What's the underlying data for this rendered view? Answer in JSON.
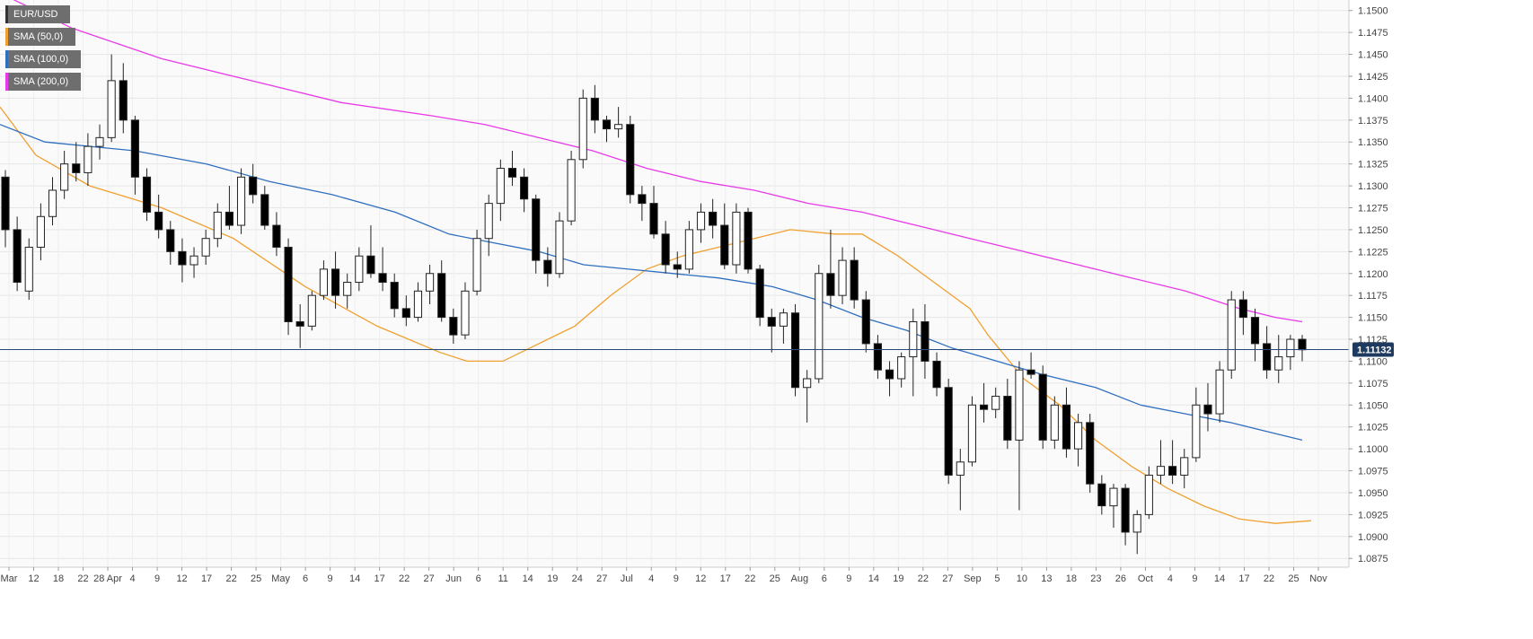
{
  "chart_data": {
    "type": "candlestick",
    "symbol": "EUR/USD",
    "legend": [
      {
        "label": "EUR/USD",
        "color": "#333333"
      },
      {
        "label": "SMA (50,0)",
        "color": "#f0a030"
      },
      {
        "label": "SMA (100,0)",
        "color": "#2f6fbf"
      },
      {
        "label": "SMA (200,0)",
        "color": "#e83ae8"
      }
    ],
    "legend_placement": "top-left",
    "grid": true,
    "ylim": [
      1.0865,
      1.1512
    ],
    "y_ticks": [
      "1.0875",
      "1.0900",
      "1.0925",
      "1.0950",
      "1.0975",
      "1.1000",
      "1.1025",
      "1.1050",
      "1.1075",
      "1.1100",
      "1.1125",
      "1.1150",
      "1.1175",
      "1.1200",
      "1.1225",
      "1.1250",
      "1.1275",
      "1.1300",
      "1.1325",
      "1.1350",
      "1.1375",
      "1.1400",
      "1.1425",
      "1.1450",
      "1.1475",
      "1.1500"
    ],
    "x_ticks": [
      "Mar",
      "12",
      "18",
      "22",
      "28 Apr",
      "4",
      "9",
      "12",
      "17",
      "22",
      "25",
      "May",
      "6",
      "9",
      "14",
      "17",
      "22",
      "27",
      "Jun",
      "6",
      "11",
      "14",
      "19",
      "24",
      "27",
      "Jul",
      "4",
      "9",
      "12",
      "17",
      "22",
      "25",
      "Aug",
      "6",
      "9",
      "14",
      "19",
      "22",
      "27",
      "Sep",
      "5",
      "10",
      "13",
      "18",
      "23",
      "26",
      "Oct",
      "4",
      "9",
      "14",
      "17",
      "22",
      "25",
      "Nov"
    ],
    "current_price": "1.11132",
    "current_price_value": 1.11132,
    "colors": {
      "up": "#ffffff",
      "down": "#000000",
      "price_line": "#2a4a7a",
      "price_tag": "#1f3a5f"
    },
    "candles": [
      [
        1.131,
        1.1318,
        1.123,
        1.125
      ],
      [
        1.125,
        1.1265,
        1.118,
        1.119
      ],
      [
        1.118,
        1.124,
        1.117,
        1.123
      ],
      [
        1.123,
        1.128,
        1.1215,
        1.1265
      ],
      [
        1.1265,
        1.131,
        1.1255,
        1.1295
      ],
      [
        1.1295,
        1.134,
        1.1285,
        1.1325
      ],
      [
        1.1325,
        1.135,
        1.1305,
        1.1315
      ],
      [
        1.1315,
        1.136,
        1.13,
        1.1345
      ],
      [
        1.1345,
        1.137,
        1.133,
        1.1355
      ],
      [
        1.1355,
        1.145,
        1.135,
        1.142
      ],
      [
        1.142,
        1.144,
        1.136,
        1.1375
      ],
      [
        1.1375,
        1.138,
        1.129,
        1.131
      ],
      [
        1.131,
        1.132,
        1.126,
        1.127
      ],
      [
        1.127,
        1.129,
        1.124,
        1.125
      ],
      [
        1.125,
        1.126,
        1.121,
        1.1225
      ],
      [
        1.1225,
        1.124,
        1.119,
        1.121
      ],
      [
        1.121,
        1.123,
        1.1195,
        1.122
      ],
      [
        1.122,
        1.125,
        1.121,
        1.124
      ],
      [
        1.124,
        1.128,
        1.123,
        1.127
      ],
      [
        1.127,
        1.13,
        1.125,
        1.1255
      ],
      [
        1.1255,
        1.132,
        1.1245,
        1.131
      ],
      [
        1.131,
        1.1325,
        1.128,
        1.129
      ],
      [
        1.129,
        1.13,
        1.125,
        1.1255
      ],
      [
        1.1255,
        1.127,
        1.122,
        1.123
      ],
      [
        1.123,
        1.124,
        1.113,
        1.1145
      ],
      [
        1.1145,
        1.1165,
        1.1115,
        1.114
      ],
      [
        1.114,
        1.118,
        1.1135,
        1.1175
      ],
      [
        1.1175,
        1.1215,
        1.117,
        1.1205
      ],
      [
        1.1205,
        1.1225,
        1.116,
        1.1175
      ],
      [
        1.1175,
        1.12,
        1.116,
        1.119
      ],
      [
        1.119,
        1.123,
        1.118,
        1.122
      ],
      [
        1.122,
        1.1255,
        1.1195,
        1.12
      ],
      [
        1.12,
        1.123,
        1.118,
        1.119
      ],
      [
        1.119,
        1.12,
        1.115,
        1.116
      ],
      [
        1.116,
        1.1175,
        1.114,
        1.115
      ],
      [
        1.115,
        1.119,
        1.1145,
        1.118
      ],
      [
        1.118,
        1.121,
        1.1165,
        1.12
      ],
      [
        1.12,
        1.1215,
        1.1145,
        1.115
      ],
      [
        1.115,
        1.116,
        1.112,
        1.113
      ],
      [
        1.113,
        1.119,
        1.1125,
        1.118
      ],
      [
        1.118,
        1.125,
        1.1175,
        1.124
      ],
      [
        1.124,
        1.129,
        1.122,
        1.128
      ],
      [
        1.128,
        1.133,
        1.126,
        1.132
      ],
      [
        1.132,
        1.134,
        1.13,
        1.131
      ],
      [
        1.131,
        1.132,
        1.127,
        1.1285
      ],
      [
        1.1285,
        1.129,
        1.12,
        1.1215
      ],
      [
        1.1215,
        1.123,
        1.1185,
        1.12
      ],
      [
        1.12,
        1.127,
        1.1195,
        1.126
      ],
      [
        1.126,
        1.134,
        1.1255,
        1.133
      ],
      [
        1.133,
        1.141,
        1.132,
        1.14
      ],
      [
        1.14,
        1.1415,
        1.136,
        1.1375
      ],
      [
        1.1375,
        1.138,
        1.135,
        1.1365
      ],
      [
        1.1365,
        1.139,
        1.1355,
        1.137
      ],
      [
        1.137,
        1.138,
        1.128,
        1.129
      ],
      [
        1.129,
        1.13,
        1.126,
        1.128
      ],
      [
        1.128,
        1.13,
        1.124,
        1.1245
      ],
      [
        1.1245,
        1.126,
        1.12,
        1.121
      ],
      [
        1.121,
        1.1225,
        1.1195,
        1.1205
      ],
      [
        1.1205,
        1.126,
        1.12,
        1.125
      ],
      [
        1.125,
        1.128,
        1.1235,
        1.127
      ],
      [
        1.127,
        1.1285,
        1.124,
        1.1255
      ],
      [
        1.1255,
        1.128,
        1.1205,
        1.121
      ],
      [
        1.121,
        1.128,
        1.12,
        1.127
      ],
      [
        1.127,
        1.1275,
        1.12,
        1.1205
      ],
      [
        1.1205,
        1.121,
        1.114,
        1.115
      ],
      [
        1.115,
        1.116,
        1.111,
        1.114
      ],
      [
        1.114,
        1.116,
        1.112,
        1.1155
      ],
      [
        1.1155,
        1.1165,
        1.106,
        1.107
      ],
      [
        1.107,
        1.109,
        1.103,
        1.108
      ],
      [
        1.108,
        1.121,
        1.1075,
        1.12
      ],
      [
        1.12,
        1.125,
        1.116,
        1.1175
      ],
      [
        1.1175,
        1.123,
        1.1165,
        1.1215
      ],
      [
        1.1215,
        1.123,
        1.116,
        1.117
      ],
      [
        1.117,
        1.118,
        1.111,
        1.112
      ],
      [
        1.112,
        1.113,
        1.108,
        1.109
      ],
      [
        1.109,
        1.11,
        1.106,
        1.108
      ],
      [
        1.108,
        1.111,
        1.107,
        1.1105
      ],
      [
        1.1105,
        1.116,
        1.106,
        1.1145
      ],
      [
        1.1145,
        1.1165,
        1.108,
        1.11
      ],
      [
        1.11,
        1.111,
        1.106,
        1.107
      ],
      [
        1.107,
        1.108,
        1.096,
        1.097
      ],
      [
        1.097,
        1.1,
        1.093,
        1.0985
      ],
      [
        1.0985,
        1.106,
        1.098,
        1.105
      ],
      [
        1.105,
        1.1075,
        1.103,
        1.1045
      ],
      [
        1.1045,
        1.107,
        1.1035,
        1.106
      ],
      [
        1.106,
        1.108,
        1.1,
        1.101
      ],
      [
        1.101,
        1.11,
        1.093,
        1.109
      ],
      [
        1.109,
        1.111,
        1.108,
        1.1085
      ],
      [
        1.1085,
        1.1095,
        1.1,
        1.101
      ],
      [
        1.101,
        1.106,
        1.1,
        1.105
      ],
      [
        1.105,
        1.107,
        1.099,
        1.1
      ],
      [
        1.1,
        1.104,
        1.098,
        1.103
      ],
      [
        1.103,
        1.104,
        1.095,
        1.096
      ],
      [
        1.096,
        1.097,
        1.0925,
        1.0935
      ],
      [
        1.0935,
        1.096,
        1.091,
        1.0955
      ],
      [
        1.0955,
        1.096,
        1.089,
        1.0905
      ],
      [
        1.0905,
        1.093,
        1.088,
        1.0925
      ],
      [
        1.0925,
        1.098,
        1.092,
        1.097
      ],
      [
        1.097,
        1.101,
        1.096,
        1.098
      ],
      [
        1.098,
        1.101,
        1.096,
        1.097
      ],
      [
        1.097,
        1.1,
        1.0955,
        1.099
      ],
      [
        1.099,
        1.107,
        1.0985,
        1.105
      ],
      [
        1.105,
        1.1075,
        1.102,
        1.104
      ],
      [
        1.104,
        1.11,
        1.103,
        1.109
      ],
      [
        1.109,
        1.118,
        1.108,
        1.117
      ],
      [
        1.117,
        1.118,
        1.113,
        1.115
      ],
      [
        1.115,
        1.116,
        1.11,
        1.112
      ],
      [
        1.112,
        1.114,
        1.108,
        1.109
      ],
      [
        1.109,
        1.113,
        1.1075,
        1.1105
      ],
      [
        1.1105,
        1.113,
        1.109,
        1.1125
      ],
      [
        1.1125,
        1.113,
        1.11,
        1.1113
      ]
    ],
    "sma50": [
      [
        0,
        1.139
      ],
      [
        40,
        1.1335
      ],
      [
        100,
        1.13
      ],
      [
        180,
        1.1275
      ],
      [
        260,
        1.124
      ],
      [
        340,
        1.1185
      ],
      [
        420,
        1.114
      ],
      [
        490,
        1.111
      ],
      [
        520,
        1.11
      ],
      [
        560,
        1.11
      ],
      [
        600,
        1.112
      ],
      [
        640,
        1.114
      ],
      [
        680,
        1.1175
      ],
      [
        720,
        1.1205
      ],
      [
        760,
        1.122
      ],
      [
        800,
        1.123
      ],
      [
        840,
        1.124
      ],
      [
        880,
        1.125
      ],
      [
        930,
        1.1245
      ],
      [
        960,
        1.1245
      ],
      [
        1000,
        1.122
      ],
      [
        1040,
        1.119
      ],
      [
        1080,
        1.116
      ],
      [
        1100,
        1.113
      ],
      [
        1140,
        1.108
      ],
      [
        1180,
        1.105
      ],
      [
        1220,
        1.101
      ],
      [
        1260,
        1.098
      ],
      [
        1300,
        1.0955
      ],
      [
        1340,
        1.0935
      ],
      [
        1380,
        1.092
      ],
      [
        1420,
        1.0915
      ],
      [
        1460,
        1.0918
      ]
    ],
    "sma100": [
      [
        0,
        1.137
      ],
      [
        50,
        1.135
      ],
      [
        150,
        1.134
      ],
      [
        230,
        1.1325
      ],
      [
        300,
        1.1305
      ],
      [
        370,
        1.129
      ],
      [
        440,
        1.127
      ],
      [
        500,
        1.1245
      ],
      [
        550,
        1.1235
      ],
      [
        600,
        1.1225
      ],
      [
        650,
        1.121
      ],
      [
        700,
        1.1205
      ],
      [
        750,
        1.12
      ],
      [
        800,
        1.1195
      ],
      [
        860,
        1.1185
      ],
      [
        910,
        1.117
      ],
      [
        960,
        1.115
      ],
      [
        1010,
        1.1135
      ],
      [
        1060,
        1.1115
      ],
      [
        1110,
        1.11
      ],
      [
        1160,
        1.1085
      ],
      [
        1220,
        1.107
      ],
      [
        1270,
        1.105
      ],
      [
        1320,
        1.104
      ],
      [
        1370,
        1.103
      ],
      [
        1410,
        1.102
      ],
      [
        1450,
        1.101
      ]
    ],
    "sma200": [
      [
        0,
        1.152
      ],
      [
        80,
        1.148
      ],
      [
        180,
        1.1445
      ],
      [
        280,
        1.142
      ],
      [
        380,
        1.1395
      ],
      [
        480,
        1.138
      ],
      [
        540,
        1.137
      ],
      [
        600,
        1.1355
      ],
      [
        660,
        1.134
      ],
      [
        720,
        1.132
      ],
      [
        780,
        1.1305
      ],
      [
        840,
        1.1295
      ],
      [
        900,
        1.128
      ],
      [
        960,
        1.127
      ],
      [
        1020,
        1.1255
      ],
      [
        1080,
        1.124
      ],
      [
        1140,
        1.1225
      ],
      [
        1200,
        1.121
      ],
      [
        1260,
        1.1195
      ],
      [
        1320,
        1.118
      ],
      [
        1380,
        1.116
      ],
      [
        1420,
        1.115
      ],
      [
        1450,
        1.1145
      ]
    ]
  }
}
